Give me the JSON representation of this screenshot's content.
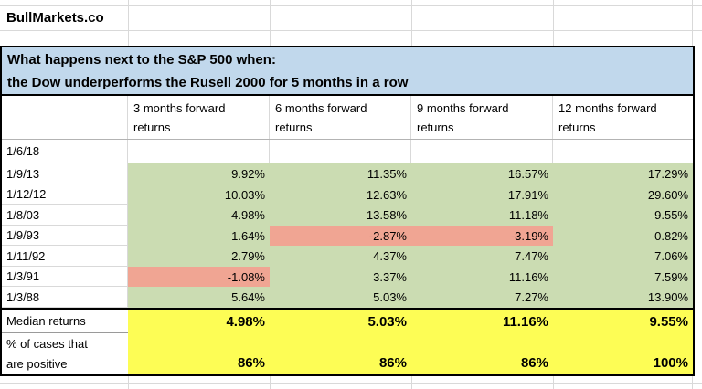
{
  "brand": "BullMarkets.co",
  "title": {
    "line1": "What happens next to the S&P 500 when:",
    "line2": "the Dow underperforms the Rusell 2000 for 5 months in a row"
  },
  "table": {
    "headers": [
      "3 months forward returns",
      "6 months forward returns",
      "9 months forward returns",
      "12 months forward returns"
    ],
    "rows": [
      {
        "date": "1/6/18",
        "values": [
          "",
          "",
          "",
          ""
        ],
        "fills": [
          "none",
          "none",
          "none",
          "none"
        ]
      },
      {
        "date": "1/9/13",
        "values": [
          "9.92%",
          "11.35%",
          "16.57%",
          "17.29%"
        ],
        "fills": [
          "green",
          "green",
          "green",
          "green"
        ]
      },
      {
        "date": "1/12/12",
        "values": [
          "10.03%",
          "12.63%",
          "17.91%",
          "29.60%"
        ],
        "fills": [
          "green",
          "green",
          "green",
          "green"
        ]
      },
      {
        "date": "1/8/03",
        "values": [
          "4.98%",
          "13.58%",
          "11.18%",
          "9.55%"
        ],
        "fills": [
          "green",
          "green",
          "green",
          "green"
        ]
      },
      {
        "date": "1/9/93",
        "values": [
          "1.64%",
          "-2.87%",
          "-3.19%",
          "0.82%"
        ],
        "fills": [
          "green",
          "red",
          "red",
          "green"
        ]
      },
      {
        "date": "1/11/92",
        "values": [
          "2.79%",
          "4.37%",
          "7.47%",
          "7.06%"
        ],
        "fills": [
          "green",
          "green",
          "green",
          "green"
        ]
      },
      {
        "date": "1/3/91",
        "values": [
          "-1.08%",
          "3.37%",
          "11.16%",
          "7.59%"
        ],
        "fills": [
          "red",
          "green",
          "green",
          "green"
        ]
      },
      {
        "date": "1/3/88",
        "values": [
          "5.64%",
          "5.03%",
          "7.27%",
          "13.90%"
        ],
        "fills": [
          "green",
          "green",
          "green",
          "green"
        ]
      }
    ],
    "summary": {
      "median_label": "Median returns",
      "median_values": [
        "4.98%",
        "5.03%",
        "11.16%",
        "9.55%"
      ],
      "pct_label_line1": "% of cases that",
      "pct_label_line2": "are positive",
      "pct_values": [
        "86%",
        "86%",
        "86%",
        "100%"
      ]
    }
  },
  "colors": {
    "header_blue": "#C1D8EC",
    "positive_green": "#CBDCB2",
    "negative_red": "#F0A593",
    "highlight_yellow": "#FDFD55"
  }
}
